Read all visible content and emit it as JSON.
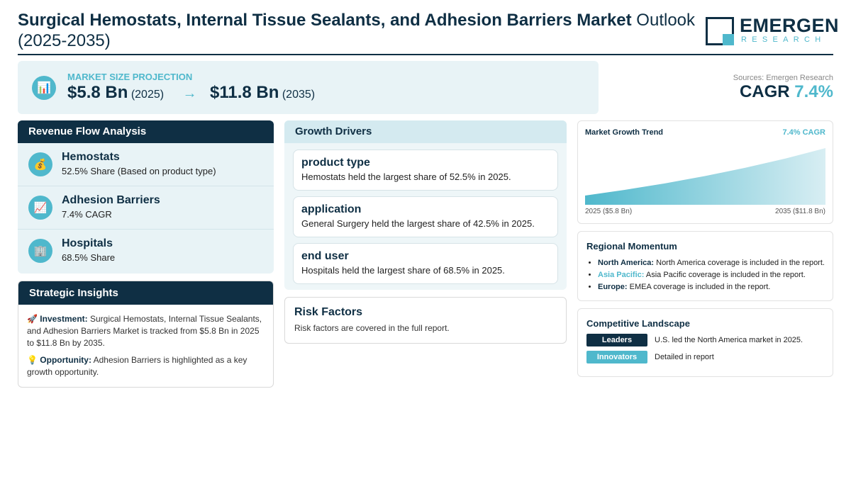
{
  "header": {
    "title_bold": "Surgical Hemostats, Internal Tissue Sealants, and Adhesion Barriers Market",
    "title_rest": " Outlook (2025-2035)",
    "logo_main": "EMERGEN",
    "logo_sub": "RESEARCH"
  },
  "projection": {
    "label": "MARKET SIZE PROJECTION",
    "start_value": "$5.8 Bn",
    "start_year": "(2025)",
    "arrow": "→",
    "end_value": "$11.8 Bn",
    "end_year": "(2035)",
    "icon": "chart-icon"
  },
  "summary": {
    "sources": "Sources: Emergen Research",
    "cagr_label": "CAGR",
    "cagr_value": "7.4%"
  },
  "revenue": {
    "heading": "Revenue Flow Analysis",
    "items": [
      {
        "title": "Hemostats",
        "sub": "52.5% Share (Based on product type)",
        "icon": "money-bag-icon"
      },
      {
        "title": "Adhesion Barriers",
        "sub": "7.4% CAGR",
        "icon": "trend-up-icon"
      },
      {
        "title": "Hospitals",
        "sub": "68.5% Share",
        "icon": "building-icon"
      }
    ]
  },
  "insights": {
    "heading": "Strategic Insights",
    "investment_label": "Investment:",
    "investment_text": " Surgical Hemostats, Internal Tissue Sealants, and Adhesion Barriers Market is tracked from $5.8 Bn in 2025 to $11.8 Bn by 2035.",
    "opportunity_label": "Opportunity:",
    "opportunity_text": " Adhesion Barriers is highlighted as a key growth opportunity."
  },
  "drivers": {
    "heading": "Growth Drivers",
    "cards": [
      {
        "title": "product type",
        "text": "Hemostats held the largest share of 52.5% in 2025."
      },
      {
        "title": "application",
        "text": "General Surgery held the largest share of 42.5% in 2025."
      },
      {
        "title": "end user",
        "text": "Hospitals held the largest share of 68.5% in 2025."
      }
    ]
  },
  "risk": {
    "heading": "Risk Factors",
    "text": "Risk factors are covered in the full report."
  },
  "trend": {
    "title": "Market Growth Trend",
    "cagr": "7.4% CAGR",
    "start_label": "2025 ($5.8 Bn)",
    "end_label": "2035 ($11.8 Bn)"
  },
  "chart_data": {
    "type": "area",
    "x": [
      2025,
      2035
    ],
    "values": [
      5.8,
      11.8
    ],
    "title": "Market Growth Trend",
    "colors": {
      "fill_start": "#4fb8cc",
      "fill_end": "#d8eef3"
    }
  },
  "momentum": {
    "heading": "Regional Momentum",
    "items": [
      {
        "region": "North America:",
        "text": " North America coverage is included in the report."
      },
      {
        "region": "Asia Pacific:",
        "text": " Asia Pacific coverage is included in the report."
      },
      {
        "region": "Europe:",
        "text": " EMEA coverage is included in the report."
      }
    ]
  },
  "competitive": {
    "heading": "Competitive Landscape",
    "leaders_label": "Leaders",
    "leaders_text": "U.S. led the North America market in 2025.",
    "innovators_label": "Innovators",
    "innovators_text": "Detailed in report"
  },
  "colors": {
    "navy": "#0f2f44",
    "teal": "#4fb8cc",
    "panel_bg": "#e8f3f6"
  }
}
